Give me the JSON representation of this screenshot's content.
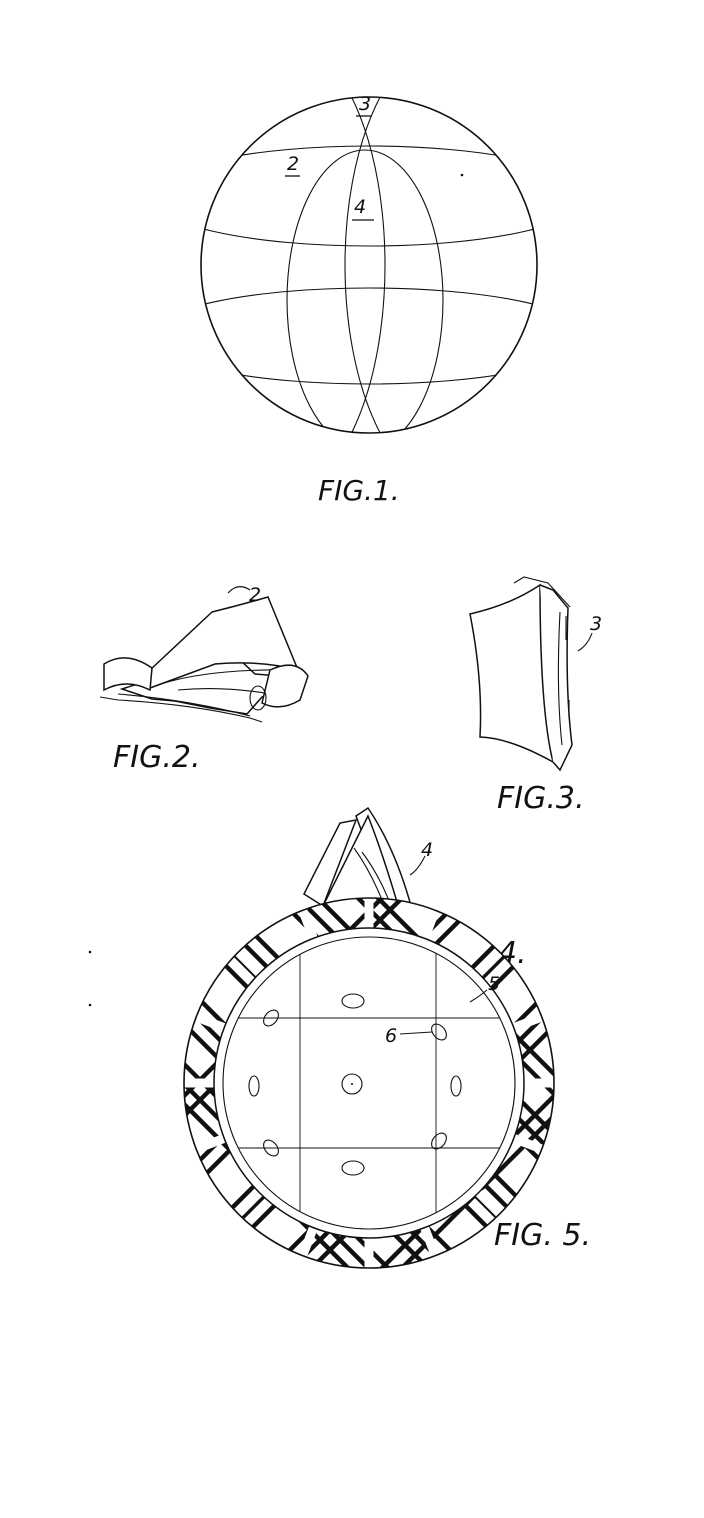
{
  "figures": [
    {
      "caption": "FIG.1.",
      "refs": [
        "3",
        "2",
        "4"
      ]
    },
    {
      "caption": "FIG.2.",
      "refs": [
        "2"
      ]
    },
    {
      "caption": "FIG.3.",
      "refs": [
        "3"
      ]
    },
    {
      "caption": "FIG 4.",
      "refs": [
        "4"
      ]
    },
    {
      "caption": "FIG. 5.",
      "refs": [
        "5",
        "6"
      ]
    }
  ]
}
